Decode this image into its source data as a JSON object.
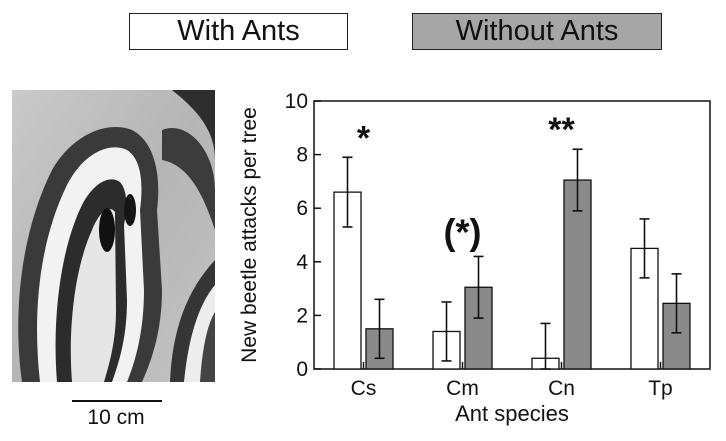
{
  "legend": {
    "with_ants": "With Ants",
    "without_ants": "Without Ants",
    "with_color": "#ffffff",
    "without_color": "#8a8a8a"
  },
  "photo": {
    "scale_label": "10 cm"
  },
  "chart_data": {
    "type": "bar",
    "categories": [
      "Cs",
      "Cm",
      "Cn",
      "Tp"
    ],
    "series": [
      {
        "name": "With Ants",
        "values": [
          6.6,
          1.4,
          0.4,
          4.5
        ],
        "err": [
          1.3,
          1.1,
          1.3,
          1.1
        ],
        "color": "#ffffff"
      },
      {
        "name": "Without Ants",
        "values": [
          1.5,
          3.05,
          7.05,
          2.45
        ],
        "err": [
          1.1,
          1.15,
          1.15,
          1.1
        ],
        "color": "#8a8a8a"
      }
    ],
    "significance": [
      "*",
      "(*)",
      "**",
      ""
    ],
    "xlabel": "Ant species",
    "ylabel": "New beetle attacks per tree",
    "ylim": [
      0,
      10
    ],
    "yticks": [
      0,
      2,
      4,
      6,
      8,
      10
    ],
    "grid": false
  }
}
